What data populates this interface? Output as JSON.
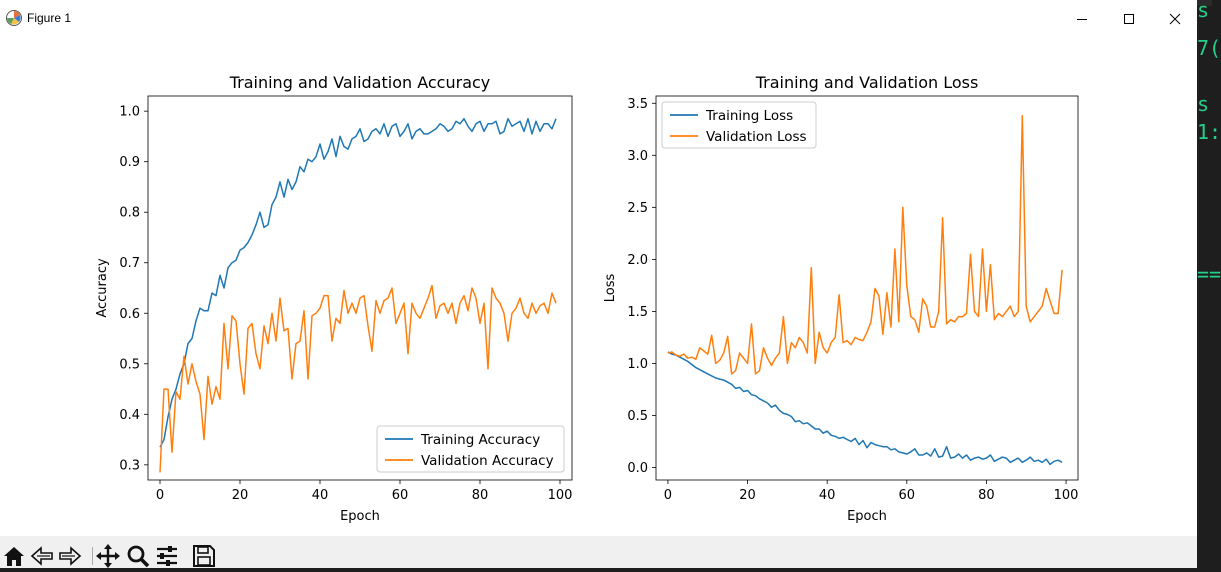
{
  "window": {
    "title": "Figure 1"
  },
  "toolbar": {
    "buttons": [
      {
        "name": "home-icon"
      },
      {
        "name": "back-icon"
      },
      {
        "name": "forward-icon"
      },
      {
        "name": "pan-icon"
      },
      {
        "name": "zoom-icon"
      },
      {
        "name": "configure-icon"
      },
      {
        "name": "save-icon"
      }
    ]
  },
  "terminal": {
    "fragments": [
      "s",
      "7(",
      "s",
      "1:",
      "=="
    ]
  },
  "chart_data": [
    {
      "type": "line",
      "title": "Training and Validation Accuracy",
      "xlabel": "Epoch",
      "ylabel": "Accuracy",
      "xlim": [
        -3,
        103
      ],
      "ylim": [
        0.27,
        1.03
      ],
      "xticks": [
        0,
        20,
        40,
        60,
        80,
        100
      ],
      "yticks": [
        0.3,
        0.4,
        0.5,
        0.6,
        0.7,
        0.8,
        0.9,
        1.0
      ],
      "xtick_labels": [
        "0",
        "20",
        "40",
        "60",
        "80",
        "100"
      ],
      "ytick_labels": [
        "0.3",
        "0.4",
        "0.5",
        "0.6",
        "0.7",
        "0.8",
        "0.9",
        "1.0"
      ],
      "legend": "lower-right",
      "series": [
        {
          "name": "Training Accuracy",
          "color": "#1f77b4",
          "values": [
            0.335,
            0.35,
            0.395,
            0.43,
            0.45,
            0.48,
            0.5,
            0.54,
            0.55,
            0.585,
            0.61,
            0.605,
            0.605,
            0.64,
            0.635,
            0.675,
            0.65,
            0.69,
            0.7,
            0.705,
            0.725,
            0.73,
            0.74,
            0.755,
            0.775,
            0.8,
            0.77,
            0.775,
            0.815,
            0.83,
            0.86,
            0.83,
            0.865,
            0.845,
            0.86,
            0.89,
            0.88,
            0.905,
            0.9,
            0.91,
            0.935,
            0.905,
            0.92,
            0.945,
            0.91,
            0.95,
            0.93,
            0.925,
            0.945,
            0.95,
            0.965,
            0.94,
            0.945,
            0.96,
            0.965,
            0.955,
            0.975,
            0.95,
            0.97,
            0.975,
            0.95,
            0.96,
            0.975,
            0.945,
            0.96,
            0.965,
            0.955,
            0.955,
            0.96,
            0.965,
            0.975,
            0.97,
            0.96,
            0.965,
            0.98,
            0.975,
            0.985,
            0.97,
            0.96,
            0.975,
            0.98,
            0.96,
            0.975,
            0.975,
            0.98,
            0.955,
            0.96,
            0.985,
            0.97,
            0.975,
            0.98,
            0.96,
            0.985,
            0.955,
            0.98,
            0.96,
            0.975,
            0.975,
            0.965,
            0.985
          ]
        },
        {
          "name": "Validation Accuracy",
          "color": "#ff7f0e",
          "values": [
            0.285,
            0.45,
            0.45,
            0.325,
            0.445,
            0.43,
            0.515,
            0.46,
            0.5,
            0.465,
            0.44,
            0.35,
            0.475,
            0.42,
            0.455,
            0.43,
            0.58,
            0.49,
            0.595,
            0.585,
            0.5,
            0.44,
            0.57,
            0.58,
            0.52,
            0.49,
            0.575,
            0.54,
            0.6,
            0.545,
            0.63,
            0.565,
            0.57,
            0.47,
            0.54,
            0.545,
            0.605,
            0.47,
            0.595,
            0.6,
            0.61,
            0.635,
            0.635,
            0.545,
            0.59,
            0.58,
            0.645,
            0.6,
            0.62,
            0.6,
            0.63,
            0.635,
            0.575,
            0.525,
            0.625,
            0.6,
            0.625,
            0.63,
            0.65,
            0.58,
            0.6,
            0.62,
            0.52,
            0.62,
            0.6,
            0.59,
            0.61,
            0.63,
            0.655,
            0.59,
            0.615,
            0.62,
            0.6,
            0.62,
            0.58,
            0.62,
            0.635,
            0.605,
            0.65,
            0.63,
            0.58,
            0.62,
            0.49,
            0.65,
            0.63,
            0.62,
            0.6,
            0.545,
            0.6,
            0.61,
            0.63,
            0.6,
            0.59,
            0.62,
            0.6,
            0.615,
            0.62,
            0.6,
            0.64,
            0.62
          ]
        }
      ]
    },
    {
      "type": "line",
      "title": "Training and Validation Loss",
      "xlabel": "Epoch",
      "ylabel": "Loss",
      "xlim": [
        -3,
        103
      ],
      "ylim": [
        -0.12,
        3.57
      ],
      "xticks": [
        0,
        20,
        40,
        60,
        80,
        100
      ],
      "yticks": [
        0.0,
        0.5,
        1.0,
        1.5,
        2.0,
        2.5,
        3.0,
        3.5
      ],
      "xtick_labels": [
        "0",
        "20",
        "40",
        "60",
        "80",
        "100"
      ],
      "ytick_labels": [
        "0.0",
        "0.5",
        "1.0",
        "1.5",
        "2.0",
        "2.5",
        "3.0",
        "3.5"
      ],
      "legend": "upper-left",
      "series": [
        {
          "name": "Training Loss",
          "color": "#1f77b4",
          "values": [
            1.11,
            1.09,
            1.08,
            1.06,
            1.04,
            1.02,
            0.99,
            0.96,
            0.94,
            0.92,
            0.9,
            0.88,
            0.86,
            0.85,
            0.84,
            0.82,
            0.8,
            0.76,
            0.77,
            0.73,
            0.74,
            0.7,
            0.69,
            0.66,
            0.64,
            0.62,
            0.58,
            0.6,
            0.55,
            0.52,
            0.51,
            0.49,
            0.44,
            0.45,
            0.42,
            0.43,
            0.4,
            0.37,
            0.37,
            0.33,
            0.35,
            0.31,
            0.3,
            0.28,
            0.29,
            0.27,
            0.25,
            0.28,
            0.22,
            0.26,
            0.19,
            0.24,
            0.22,
            0.21,
            0.2,
            0.2,
            0.17,
            0.18,
            0.15,
            0.14,
            0.13,
            0.15,
            0.18,
            0.12,
            0.12,
            0.14,
            0.11,
            0.18,
            0.1,
            0.11,
            0.2,
            0.09,
            0.1,
            0.13,
            0.09,
            0.12,
            0.07,
            0.09,
            0.1,
            0.08,
            0.09,
            0.12,
            0.06,
            0.08,
            0.1,
            0.09,
            0.05,
            0.07,
            0.09,
            0.05,
            0.07,
            0.1,
            0.06,
            0.07,
            0.05,
            0.08,
            0.03,
            0.06,
            0.07,
            0.05
          ]
        },
        {
          "name": "Validation Loss",
          "color": "#ff7f0e",
          "values": [
            1.1,
            1.11,
            1.08,
            1.07,
            1.09,
            1.05,
            1.06,
            1.04,
            1.15,
            1.12,
            1.09,
            1.27,
            1.0,
            1.03,
            1.1,
            1.26,
            0.9,
            0.93,
            1.1,
            1.05,
            1.0,
            1.38,
            0.9,
            0.93,
            1.15,
            1.05,
            0.98,
            1.05,
            1.1,
            1.45,
            1.0,
            1.2,
            1.15,
            1.25,
            1.2,
            1.1,
            1.92,
            1.0,
            1.3,
            1.15,
            1.1,
            1.2,
            1.25,
            1.66,
            1.2,
            1.22,
            1.18,
            1.25,
            1.23,
            1.22,
            1.3,
            1.4,
            1.72,
            1.65,
            1.28,
            1.68,
            1.35,
            2.1,
            1.4,
            2.5,
            1.75,
            1.45,
            1.42,
            1.3,
            1.62,
            1.55,
            1.35,
            1.35,
            1.5,
            2.4,
            1.38,
            1.42,
            1.4,
            1.45,
            1.45,
            1.48,
            2.05,
            1.5,
            1.45,
            2.1,
            1.5,
            1.95,
            1.42,
            1.48,
            1.45,
            1.5,
            1.55,
            1.45,
            1.5,
            3.38,
            1.55,
            1.4,
            1.45,
            1.5,
            1.55,
            1.72,
            1.6,
            1.48,
            1.48,
            1.9
          ]
        }
      ]
    }
  ]
}
